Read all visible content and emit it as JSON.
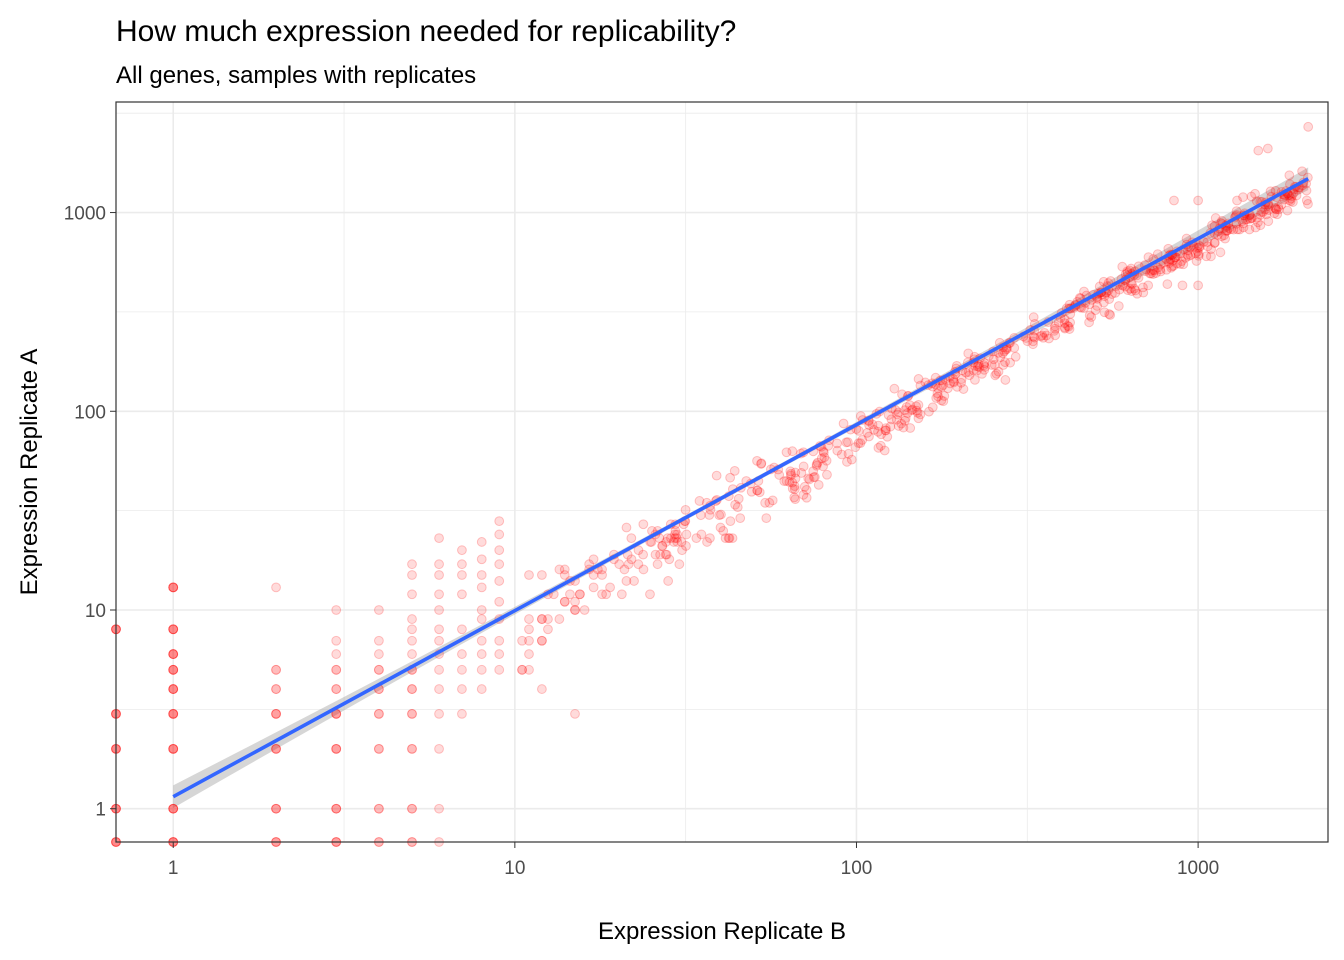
{
  "chart_data": {
    "type": "scatter",
    "title": "How much expression needed for replicability?",
    "subtitle": "All genes, samples with replicates",
    "xlabel": "Expression Replicate B",
    "ylabel": "Expression Replicate A",
    "x_scale": "log10",
    "y_scale": "log10",
    "xlim": [
      0.68,
      2400
    ],
    "ylim": [
      0.68,
      3600
    ],
    "x_ticks": [
      1,
      10,
      100,
      1000
    ],
    "x_tick_labels": [
      "1",
      "10",
      "100",
      "1000"
    ],
    "y_ticks": [
      1,
      10,
      100,
      1000
    ],
    "y_tick_labels": [
      "1",
      "10",
      "100",
      "1000"
    ],
    "grid": true,
    "colors": {
      "points": "#ff0000",
      "fit_line": "#3366ff",
      "confidence_band": "#999999",
      "grid": "#ebebeb",
      "panel_border": "#333333"
    },
    "fit": {
      "method": "lm (log-log)",
      "x": [
        1,
        2100
      ],
      "y": [
        1.15,
        1480
      ]
    },
    "low_count_points": [
      [
        0.68,
        0.68
      ],
      [
        0.68,
        1
      ],
      [
        0.68,
        2
      ],
      [
        0.68,
        3
      ],
      [
        0.68,
        8
      ],
      [
        1,
        0.68
      ],
      [
        1,
        1
      ],
      [
        1,
        2
      ],
      [
        1,
        3
      ],
      [
        1,
        4
      ],
      [
        1,
        5
      ],
      [
        1,
        6
      ],
      [
        1,
        8
      ],
      [
        1,
        13
      ],
      [
        2,
        0.68
      ],
      [
        2,
        1
      ],
      [
        2,
        2
      ],
      [
        2,
        3
      ],
      [
        2,
        4
      ],
      [
        2,
        5
      ],
      [
        2,
        13
      ],
      [
        3,
        0.68
      ],
      [
        3,
        1
      ],
      [
        3,
        2
      ],
      [
        3,
        3
      ],
      [
        3,
        4
      ],
      [
        3,
        5
      ],
      [
        3,
        6
      ],
      [
        3,
        7
      ],
      [
        3,
        10
      ],
      [
        4,
        0.68
      ],
      [
        4,
        1
      ],
      [
        4,
        2
      ],
      [
        4,
        3
      ],
      [
        4,
        4
      ],
      [
        4,
        5
      ],
      [
        4,
        6
      ],
      [
        4,
        7
      ],
      [
        4,
        10
      ],
      [
        5,
        0.68
      ],
      [
        5,
        1
      ],
      [
        5,
        2
      ],
      [
        5,
        3
      ],
      [
        5,
        4
      ],
      [
        5,
        5
      ],
      [
        5,
        6
      ],
      [
        5,
        7
      ],
      [
        5,
        8
      ],
      [
        5,
        9
      ],
      [
        5,
        12
      ],
      [
        5,
        15
      ],
      [
        5,
        17
      ],
      [
        6,
        0.68
      ],
      [
        6,
        1
      ],
      [
        6,
        2
      ],
      [
        6,
        3
      ],
      [
        6,
        4
      ],
      [
        6,
        5
      ],
      [
        6,
        6
      ],
      [
        6,
        7
      ],
      [
        6,
        8
      ],
      [
        6,
        10
      ],
      [
        6,
        12
      ],
      [
        6,
        15
      ],
      [
        6,
        17
      ],
      [
        6,
        23
      ],
      [
        7,
        3
      ],
      [
        7,
        4
      ],
      [
        7,
        5
      ],
      [
        7,
        6
      ],
      [
        7,
        8
      ],
      [
        7,
        12
      ],
      [
        7,
        15
      ],
      [
        7,
        17
      ],
      [
        7,
        20
      ],
      [
        8,
        4
      ],
      [
        8,
        5
      ],
      [
        8,
        6
      ],
      [
        8,
        7
      ],
      [
        8,
        9
      ],
      [
        8,
        10
      ],
      [
        8,
        13
      ],
      [
        8,
        15
      ],
      [
        8,
        18
      ],
      [
        8,
        22
      ],
      [
        9,
        5
      ],
      [
        9,
        6
      ],
      [
        9,
        7
      ],
      [
        9,
        9
      ],
      [
        9,
        11
      ],
      [
        9,
        14
      ],
      [
        9,
        17
      ],
      [
        9,
        20
      ],
      [
        9,
        24
      ],
      [
        9,
        28
      ],
      [
        12,
        4
      ],
      [
        15,
        3
      ]
    ],
    "scatter_model": {
      "n_points": 640,
      "x_range": [
        10,
        2100
      ],
      "relation": "A ≈ 0.9·B^0.96, log-normal scatter"
    },
    "extreme_points": [
      [
        1500,
        2050
      ],
      [
        1600,
        2100
      ],
      [
        2100,
        2700
      ],
      [
        1000,
        1150
      ],
      [
        1300,
        1150
      ],
      [
        850,
        1150
      ],
      [
        900,
        430
      ],
      [
        1000,
        430
      ]
    ]
  }
}
